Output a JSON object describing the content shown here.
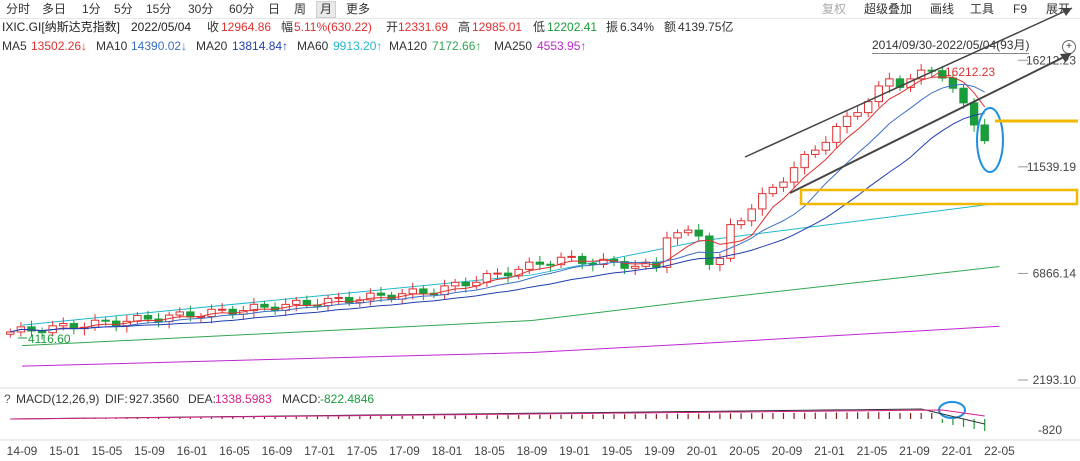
{
  "toolbar": {
    "periods": [
      "分时",
      "多日",
      "1分",
      "5分",
      "15分",
      "30分",
      "60分",
      "日",
      "周",
      "月",
      "更多"
    ],
    "active_period": "月",
    "tools": [
      "复权",
      "超级叠加",
      "画线",
      "工具",
      "F9",
      "展开"
    ]
  },
  "info": {
    "code": "IXIC.GI[纳斯达克指数]",
    "date": "2022/05/04",
    "close_label": "收",
    "close": "12964.86",
    "change_label": "幅",
    "change": "5.11%(630.22)",
    "open_label": "开",
    "open": "12331.69",
    "high_label": "高",
    "high": "12985.01",
    "low_label": "低",
    "low": "12202.41",
    "amp_label": "振",
    "amp": "6.34%",
    "amount_label": "额",
    "amount": "4139.75亿"
  },
  "ma": [
    {
      "label": "MA5",
      "value": "13502.26↓",
      "color": "#e03131"
    },
    {
      "label": "MA10",
      "value": "14390.02↓",
      "color": "#3b6fc6"
    },
    {
      "label": "MA20",
      "value": "13814.84↑",
      "color": "#1f3fb0"
    },
    {
      "label": "MA60",
      "value": "9913.20↑",
      "color": "#22b8cf"
    },
    {
      "label": "MA120",
      "value": "7172.66↑",
      "color": "#2fa84f"
    },
    {
      "label": "MA250",
      "value": "4553.95↑",
      "color": "#c026d3"
    }
  ],
  "range": "2014/09/30-2022/05/04(93月)",
  "zoom_icon": "zoom-icon",
  "macd": {
    "label": "MACD(12,26,9)",
    "dif_label": "DIF:",
    "dif": "927.3560",
    "dea_label": "DEA:",
    "dea": "1338.5983",
    "macd_label": "MACD:",
    "macd": "-822.4846",
    "axis_label": "-820"
  },
  "colors": {
    "up": "#e03131",
    "down": "#1a9c3a",
    "annotation_blue": "#1c8fe0",
    "annotation_yellow": "#f5b800",
    "trend": "#444444"
  },
  "chart_data": {
    "type": "candlestick",
    "y_ticks": [
      "16212.23",
      "11539.19",
      "6866.14",
      "2193.10"
    ],
    "y_tick_values": [
      16212.23,
      11539.19,
      6866.14,
      2193.1
    ],
    "x_ticks": [
      "14-09",
      "15-01",
      "15-05",
      "15-09",
      "16-01",
      "16-05",
      "16-09",
      "17-01",
      "17-05",
      "17-09",
      "18-01",
      "18-05",
      "18-09",
      "19-01",
      "19-05",
      "19-09",
      "20-01",
      "20-05",
      "20-09",
      "21-01",
      "21-05",
      "21-09",
      "22-01",
      "22-05"
    ],
    "annotations": [
      {
        "label": "16212.23",
        "note": "high"
      },
      {
        "label": "4116.60",
        "note": "low"
      }
    ],
    "ylim": [
      2193.1,
      16400
    ],
    "ma_lines": [
      {
        "name": "MA60",
        "x": [
          "14-09",
          "18-09",
          "20-01",
          "22-05"
        ],
        "y": [
          4600,
          6800,
          8300,
          9950
        ]
      },
      {
        "name": "MA120",
        "x": [
          "14-09",
          "18-09",
          "20-01",
          "22-05"
        ],
        "y": [
          3700,
          4800,
          5700,
          7170
        ]
      },
      {
        "name": "MA250",
        "x": [
          "14-09",
          "18-09",
          "20-01",
          "22-05"
        ],
        "y": [
          2800,
          3400,
          3800,
          4550
        ]
      }
    ],
    "macd_axis": [
      -820
    ]
  }
}
